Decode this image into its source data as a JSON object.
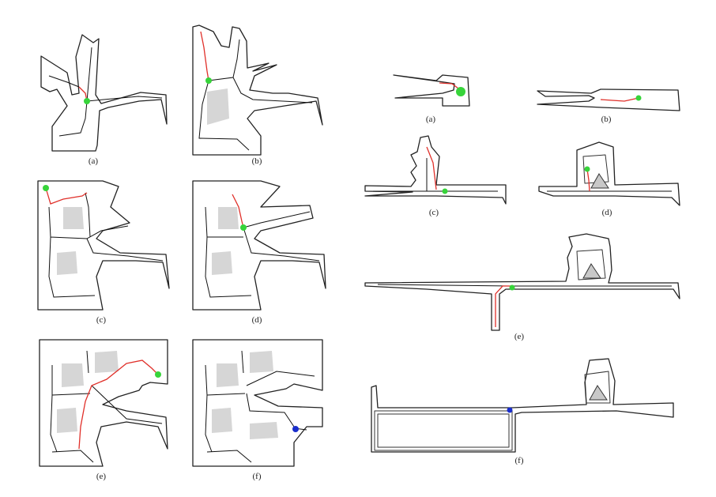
{
  "left_panel": {
    "captions": [
      "(a)",
      "(b)",
      "(c)",
      "(d)",
      "(e)",
      "(f)"
    ]
  },
  "right_panel": {
    "captions": [
      "(a)",
      "(b)",
      "(c)",
      "(d)",
      "(e)",
      "(f)"
    ]
  },
  "colors": {
    "wall": "#222222",
    "path": "#e0302a",
    "node": "#37d43a",
    "final_node": "#1a2ecc",
    "obstacle": "#d6d6d6"
  }
}
